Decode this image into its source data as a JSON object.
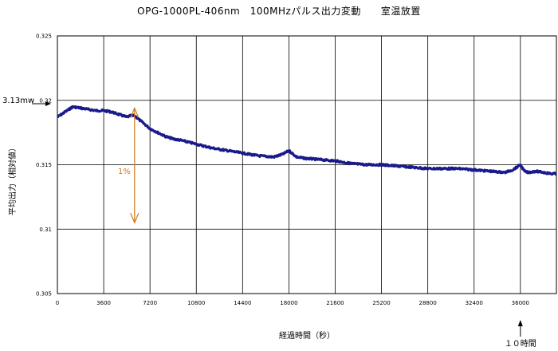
{
  "chart_data": {
    "type": "line",
    "title": "OPG-1000PL-406nm　100MHzパルス出力変動　　室温放置",
    "xlabel": "経過時間（秒）",
    "ylabel": "平均出力（相対値）",
    "xlim": [
      0,
      38800
    ],
    "ylim": [
      0.305,
      0.325
    ],
    "x_ticks": [
      "0",
      "3600",
      "7200",
      "10800",
      "14400",
      "18000",
      "21600",
      "25200",
      "28800",
      "32400",
      "36000"
    ],
    "x_tick_values": [
      0,
      3600,
      7200,
      10800,
      14400,
      18000,
      21600,
      25200,
      28800,
      32400,
      36000
    ],
    "y_ticks": [
      "0.305",
      "0.31",
      "0.315",
      "0.32",
      "0.325"
    ],
    "y_tick_values": [
      0.305,
      0.31,
      0.315,
      0.32,
      0.325
    ],
    "grid": true,
    "series": [
      {
        "color": "#1a1a8c",
        "x": [
          0,
          600,
          1200,
          1800,
          2400,
          3000,
          3600,
          4200,
          4800,
          5400,
          5700,
          6000,
          6600,
          7200,
          7800,
          8400,
          9000,
          9600,
          10800,
          12000,
          13200,
          14400,
          15600,
          16800,
          17500,
          18000,
          18600,
          19200,
          20400,
          21600,
          22800,
          24000,
          25200,
          26400,
          27600,
          28800,
          30000,
          31200,
          32400,
          33600,
          34800,
          35400,
          36000,
          36300,
          36600,
          37200,
          37800,
          38400,
          38800
        ],
        "y": [
          0.3187,
          0.3191,
          0.3195,
          0.3194,
          0.3193,
          0.3192,
          0.3192,
          0.3191,
          0.3189,
          0.3187,
          0.3188,
          0.3188,
          0.3183,
          0.3178,
          0.3175,
          0.3172,
          0.317,
          0.3169,
          0.3166,
          0.3163,
          0.3161,
          0.3159,
          0.3157,
          0.3156,
          0.3158,
          0.3161,
          0.3156,
          0.3155,
          0.3154,
          0.3153,
          0.3151,
          0.315,
          0.315,
          0.3149,
          0.3148,
          0.3147,
          0.3147,
          0.3147,
          0.3146,
          0.3145,
          0.3144,
          0.3146,
          0.315,
          0.3145,
          0.3144,
          0.3145,
          0.3144,
          0.3143,
          0.3143
        ]
      }
    ],
    "annotations": {
      "ref_label": "3.13mw",
      "pct_label": "1%",
      "time_marker_label": "１０時間",
      "time_marker_x": 36000,
      "pct_arrow_x": 6000,
      "pct_arrow_range": [
        0.3105,
        0.3194
      ]
    }
  }
}
